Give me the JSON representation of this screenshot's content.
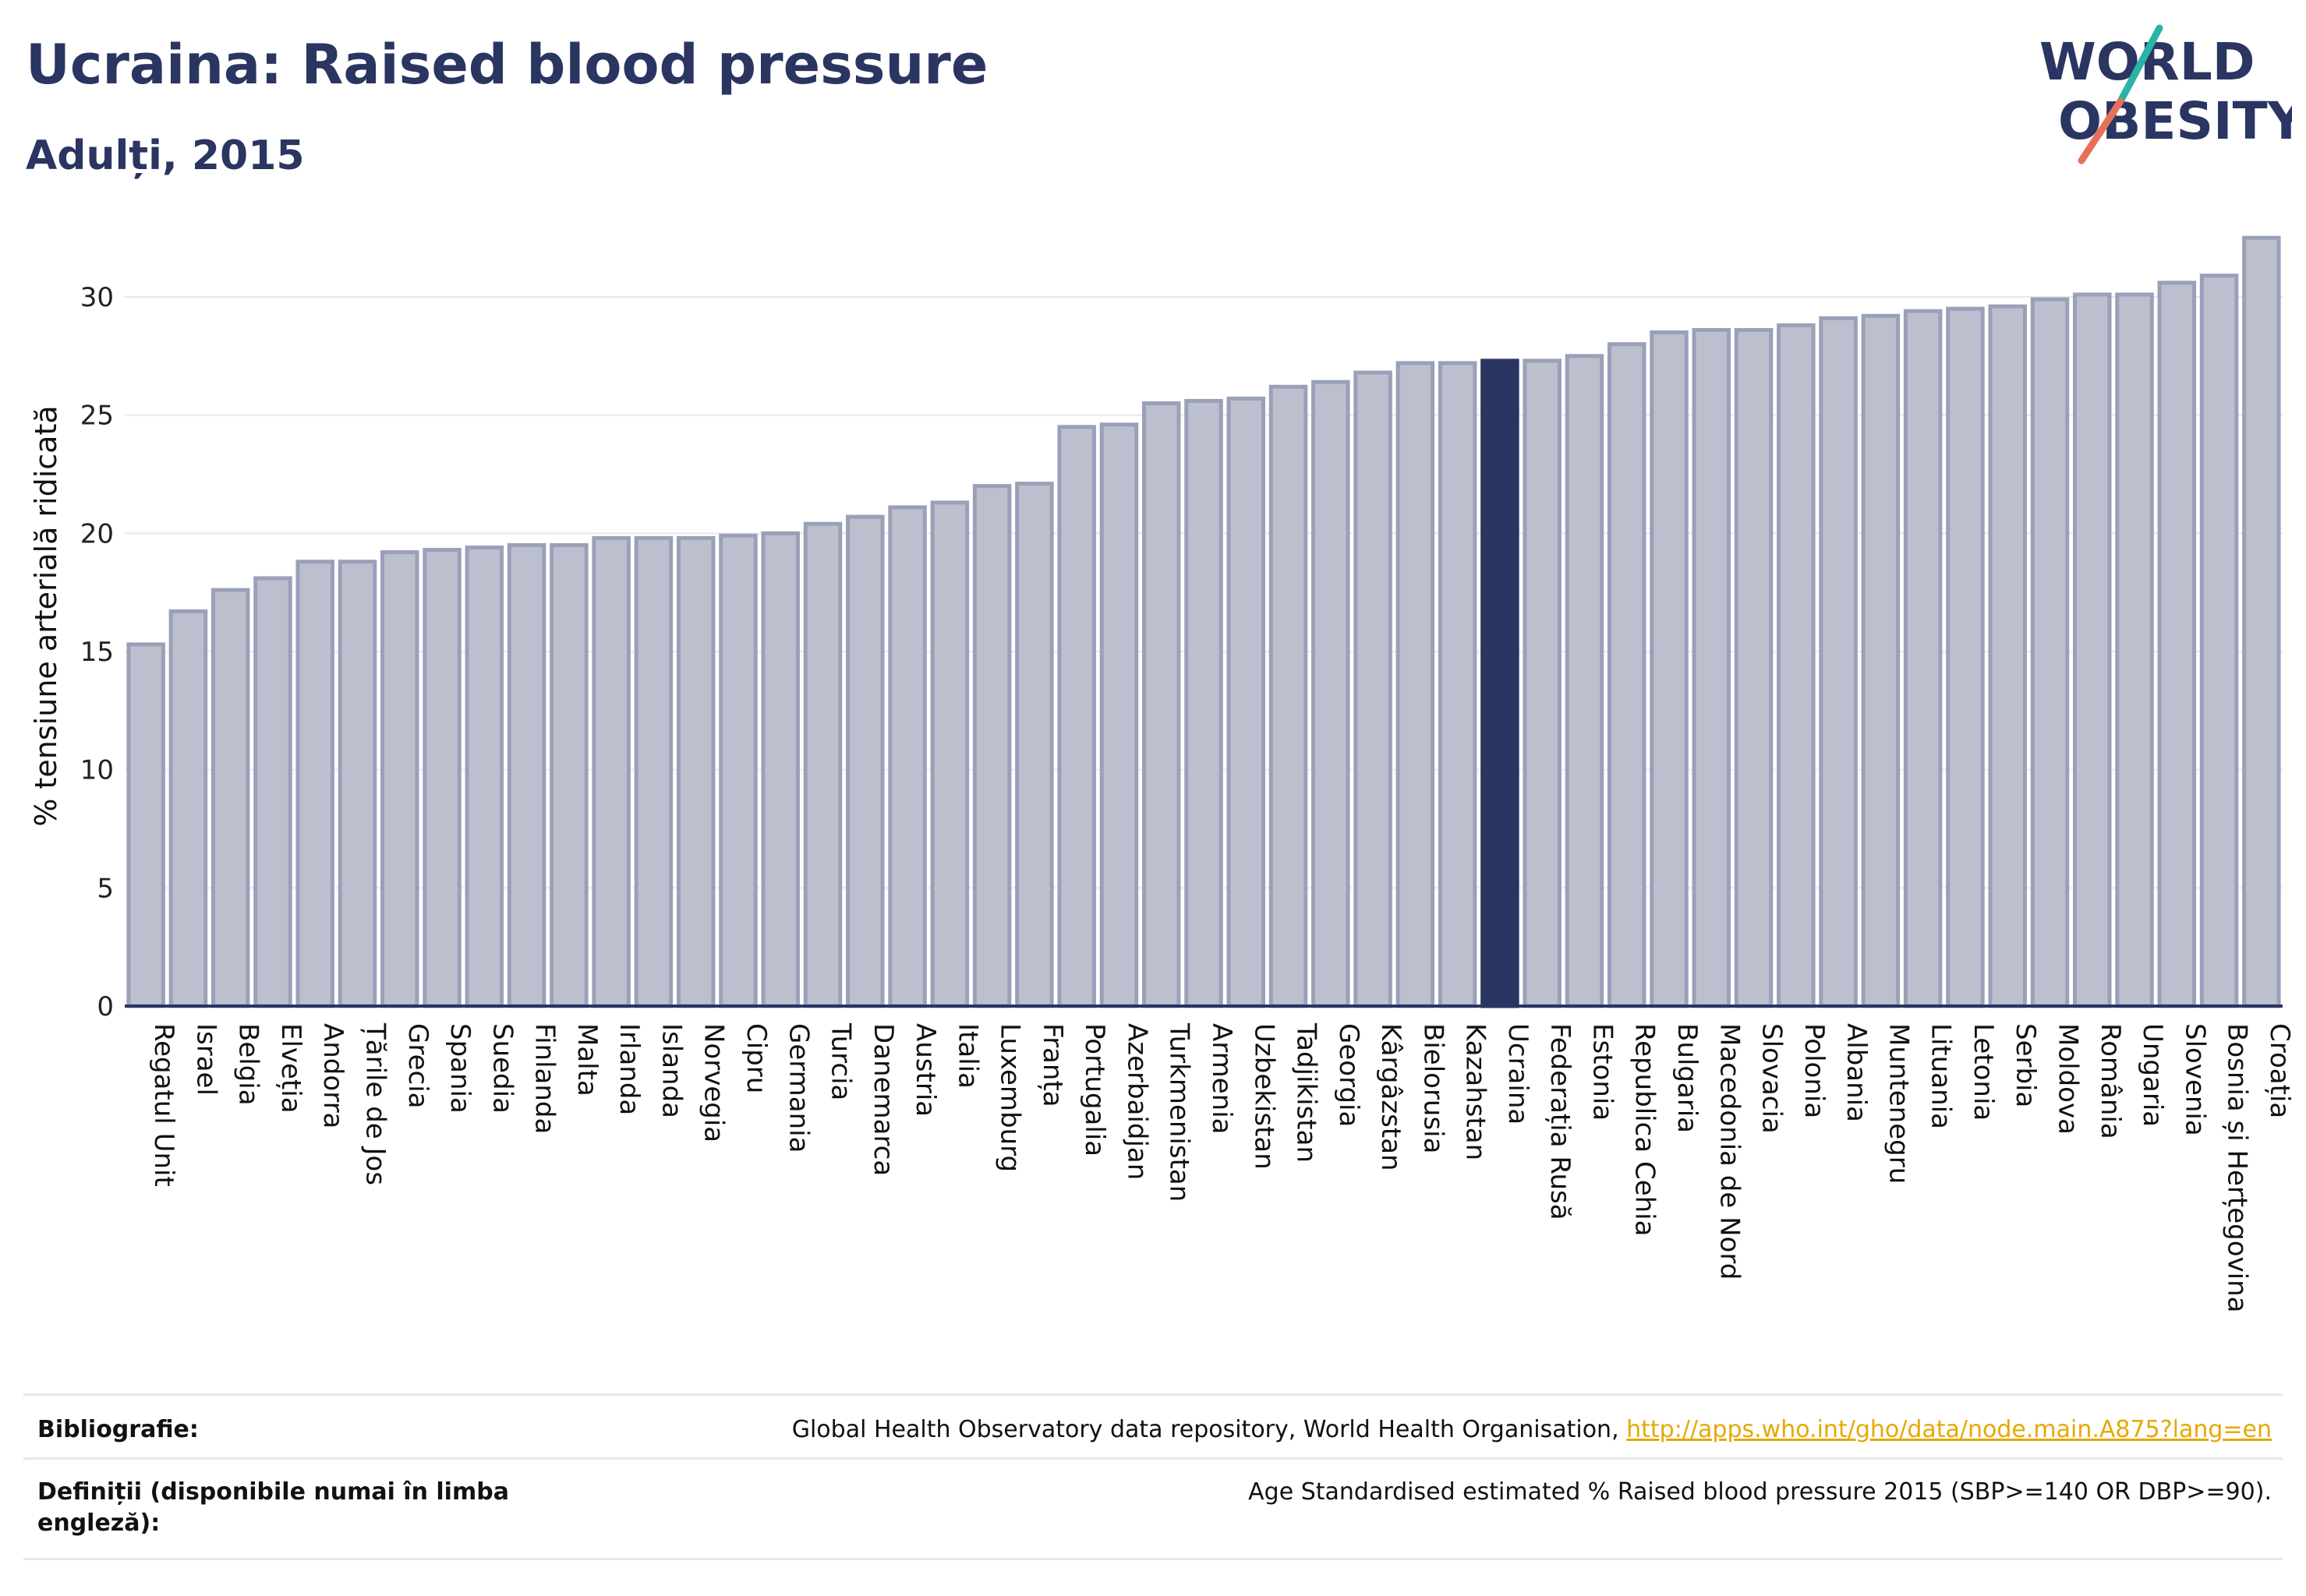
{
  "header": {
    "title": "Ucraina: Raised blood pressure",
    "subtitle": "Adulți, 2015"
  },
  "logo": {
    "line1": "WORLD",
    "line2": "OBESITY",
    "colors": {
      "text": "#2a3561",
      "slash_teal": "#2ab3a6",
      "slash_coral": "#e8705a"
    }
  },
  "chart_data": {
    "type": "bar",
    "ylabel": "% tensiune arterială ridicată",
    "xlabel": "",
    "ylim": [
      0,
      33
    ],
    "yticks": [
      0,
      5,
      10,
      15,
      20,
      25,
      30
    ],
    "grid": true,
    "highlight": "Ucraina",
    "colors": {
      "bar": "#bcc0ce",
      "bar_border": "#9aa0b8",
      "highlight": "#2a3561",
      "axis": "#2a3561",
      "grid": "#e6e8ee"
    },
    "categories": [
      "Regatul Unit",
      "Israel",
      "Belgia",
      "Elveția",
      "Andorra",
      "Țările de Jos",
      "Grecia",
      "Spania",
      "Suedia",
      "Finlanda",
      "Malta",
      "Irlanda",
      "Islanda",
      "Norvegia",
      "Cipru",
      "Germania",
      "Turcia",
      "Danemarca",
      "Austria",
      "Italia",
      "Luxemburg",
      "Franța",
      "Portugalia",
      "Azerbaidjan",
      "Turkmenistan",
      "Armenia",
      "Uzbekistan",
      "Tadjikistan",
      "Georgia",
      "Kârgâzstan",
      "Bielorusia",
      "Kazahstan",
      "Ucraina",
      "Federația Rusă",
      "Estonia",
      "Republica Cehia",
      "Bulgaria",
      "Macedonia de Nord",
      "Slovacia",
      "Polonia",
      "Albania",
      "Muntenegru",
      "Lituania",
      "Letonia",
      "Serbia",
      "Moldova",
      "România",
      "Ungaria",
      "Slovenia",
      "Bosnia și Herțegovina",
      "Croația"
    ],
    "values": [
      15.3,
      16.7,
      17.6,
      18.1,
      18.8,
      18.8,
      19.2,
      19.3,
      19.4,
      19.5,
      19.5,
      19.8,
      19.8,
      19.8,
      19.9,
      20.0,
      20.4,
      20.7,
      21.1,
      21.3,
      22.0,
      22.1,
      24.5,
      24.6,
      25.5,
      25.6,
      25.7,
      26.2,
      26.4,
      26.8,
      27.2,
      27.2,
      27.3,
      27.3,
      27.5,
      28.0,
      28.5,
      28.6,
      28.6,
      28.8,
      29.1,
      29.2,
      29.4,
      29.5,
      29.6,
      29.9,
      30.1,
      30.1,
      30.6,
      30.9,
      32.5
    ]
  },
  "footer": {
    "bibliography_label": "Bibliografie:",
    "bibliography_text": "Global Health Observatory data repository, World Health Organisation, ",
    "bibliography_link": "http://apps.who.int/gho/data/node.main.A875?lang=en",
    "definitions_label": "Definiții (disponibile numai în limba engleză):",
    "definitions_text": "Age Standardised estimated % Raised blood pressure 2015 (SBP>=140 OR DBP>=90)."
  }
}
